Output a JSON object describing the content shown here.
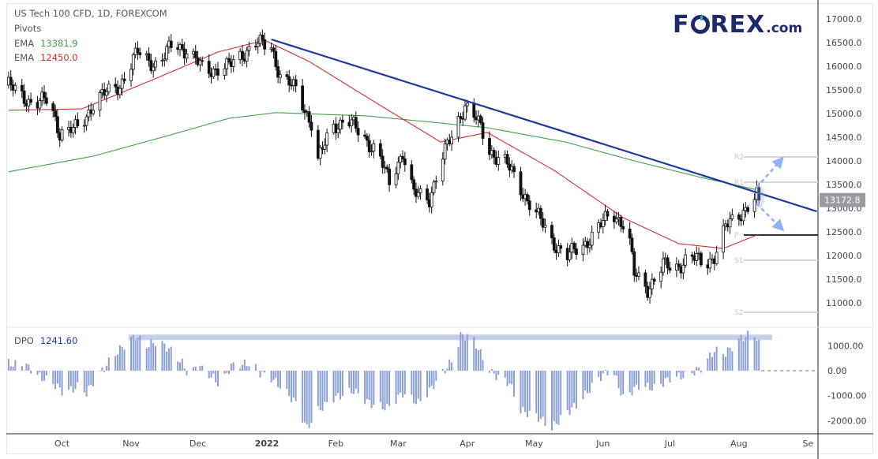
{
  "header": {
    "symbol_title": "US Tech 100 CFD, 1D, FOREXCOM",
    "pivots_label": "Pivots",
    "ema_label": "EMA",
    "ema_slow_value": "13381.9",
    "ema_fast_value": "12450.0",
    "dpo_label": "DPO",
    "dpo_value": "1241.60",
    "logo_text": "FOREX.com"
  },
  "colors": {
    "ema_slow": "#43a047",
    "ema_fast": "#d32f2f",
    "trendline": "#1e3a9e",
    "dpo_bars": "#8a9fd6",
    "highlight_band": "#c7d0ea",
    "arrows": "#8fb2f5",
    "price_label_bg": "#9a9ba0"
  },
  "chart_data": [
    {
      "type": "candlestick",
      "title": "US Tech 100 CFD, 1D, FOREXCOM",
      "x_ticks": [
        {
          "date": "2021-10-01",
          "label": "Oct"
        },
        {
          "date": "2021-11-01",
          "label": "Nov"
        },
        {
          "date": "2021-12-01",
          "label": "Dec"
        },
        {
          "date": "2022-01-01",
          "label": "2022"
        },
        {
          "date": "2022-02-01",
          "label": "Feb"
        },
        {
          "date": "2022-03-01",
          "label": "Mar"
        },
        {
          "date": "2022-04-01",
          "label": "Apr"
        },
        {
          "date": "2022-05-01",
          "label": "May"
        },
        {
          "date": "2022-06-01",
          "label": "Jun"
        },
        {
          "date": "2022-07-01",
          "label": "Jul"
        },
        {
          "date": "2022-08-01",
          "label": "Aug"
        },
        {
          "date": "2022-09-01",
          "label": "Se"
        }
      ],
      "y_ticks": [
        "17000.0",
        "16500.0",
        "16000.0",
        "15500.0",
        "15000.0",
        "14500.0",
        "14000.0",
        "13500.0",
        "13000.0",
        "12500.0",
        "12000.0",
        "11500.0",
        "11000.0"
      ],
      "ylim": [
        10700,
        17200
      ],
      "last_price": 13172.8,
      "approx_close_path": [
        [
          "2021-09-07",
          15600
        ],
        [
          "2021-09-18",
          15200
        ],
        [
          "2021-09-25",
          15300
        ],
        [
          "2021-09-30",
          14600
        ],
        [
          "2021-10-09",
          14700
        ],
        [
          "2021-10-16",
          15300
        ],
        [
          "2021-10-27",
          15600
        ],
        [
          "2021-11-04",
          16300
        ],
        [
          "2021-11-13",
          16000
        ],
        [
          "2021-11-20",
          16500
        ],
        [
          "2021-11-27",
          16300
        ],
        [
          "2021-12-04",
          15900
        ],
        [
          "2021-12-15",
          16000
        ],
        [
          "2021-12-27",
          16500
        ],
        [
          "2022-01-03",
          16400
        ],
        [
          "2022-01-07",
          15800
        ],
        [
          "2022-01-14",
          15500
        ],
        [
          "2022-01-21",
          14800
        ],
        [
          "2022-01-24",
          14000
        ],
        [
          "2022-01-30",
          14700
        ],
        [
          "2022-02-06",
          14900
        ],
        [
          "2022-02-13",
          14500
        ],
        [
          "2022-02-20",
          14200
        ],
        [
          "2022-02-25",
          13500
        ],
        [
          "2022-03-03",
          14200
        ],
        [
          "2022-03-08",
          13300
        ],
        [
          "2022-03-15",
          13200
        ],
        [
          "2022-03-20",
          14000
        ],
        [
          "2022-03-26",
          14600
        ],
        [
          "2022-03-31",
          15200
        ],
        [
          "2022-04-05",
          14900
        ],
        [
          "2022-04-11",
          14200
        ],
        [
          "2022-04-18",
          14000
        ],
        [
          "2022-04-25",
          13400
        ],
        [
          "2022-05-02",
          12900
        ],
        [
          "2022-05-09",
          12300
        ],
        [
          "2022-05-16",
          12000
        ],
        [
          "2022-05-23",
          12200
        ],
        [
          "2022-05-30",
          12600
        ],
        [
          "2022-06-05",
          12900
        ],
        [
          "2022-06-12",
          12600
        ],
        [
          "2022-06-15",
          11600
        ],
        [
          "2022-06-21",
          11300
        ],
        [
          "2022-06-28",
          11800
        ],
        [
          "2022-07-03",
          11700
        ],
        [
          "2022-07-10",
          12000
        ],
        [
          "2022-07-17",
          11800
        ],
        [
          "2022-07-21",
          12000
        ],
        [
          "2022-07-26",
          12600
        ],
        [
          "2022-08-02",
          12900
        ],
        [
          "2022-08-09",
          13250
        ],
        [
          "2022-08-10",
          13172.8
        ]
      ],
      "ema_slow_path": [
        [
          "2021-09-07",
          13770
        ],
        [
          "2021-10-15",
          14100
        ],
        [
          "2021-11-15",
          14500
        ],
        [
          "2021-12-15",
          14900
        ],
        [
          "2022-01-05",
          15020
        ],
        [
          "2022-02-15",
          14950
        ],
        [
          "2022-03-20",
          14800
        ],
        [
          "2022-04-10",
          14700
        ],
        [
          "2022-05-15",
          14400
        ],
        [
          "2022-06-15",
          14000
        ],
        [
          "2022-07-15",
          13650
        ],
        [
          "2022-08-10",
          13380
        ]
      ],
      "ema_fast_path": [
        [
          "2021-09-07",
          15070
        ],
        [
          "2021-10-10",
          15100
        ],
        [
          "2021-11-10",
          15700
        ],
        [
          "2021-12-10",
          16300
        ],
        [
          "2021-12-31",
          16550
        ],
        [
          "2022-01-20",
          16100
        ],
        [
          "2022-02-20",
          15200
        ],
        [
          "2022-03-20",
          14400
        ],
        [
          "2022-04-10",
          14600
        ],
        [
          "2022-05-10",
          13800
        ],
        [
          "2022-06-10",
          12800
        ],
        [
          "2022-07-05",
          12250
        ],
        [
          "2022-07-25",
          12150
        ],
        [
          "2022-08-10",
          12450
        ]
      ],
      "trendline": [
        [
          "2022-01-03",
          16567
        ],
        [
          "2022-09-05",
          12933
        ]
      ],
      "pivots": [
        {
          "label": "R2",
          "value": 14083
        },
        {
          "label": "R1",
          "value": 13550
        },
        {
          "label": "P",
          "value": 12433
        },
        {
          "label": "S1",
          "value": 11900
        },
        {
          "label": "S2",
          "value": 10800
        }
      ]
    },
    {
      "type": "bar",
      "title": "DPO",
      "y_ticks": [
        "1000.00",
        "0.00",
        "-1000.00",
        "-2000.00"
      ],
      "ylim": [
        -2500,
        1600
      ],
      "highlight_level": 1350,
      "approx_value_path": [
        [
          "2021-09-07",
          300
        ],
        [
          "2021-09-16",
          150
        ],
        [
          "2021-09-20",
          -200
        ],
        [
          "2021-09-27",
          -500
        ],
        [
          "2021-10-02",
          -900
        ],
        [
          "2021-10-09",
          -600
        ],
        [
          "2021-10-12",
          -900
        ],
        [
          "2021-10-16",
          -300
        ],
        [
          "2021-10-20",
          100
        ],
        [
          "2021-10-24",
          600
        ],
        [
          "2021-10-30",
          1100
        ],
        [
          "2021-11-03",
          1400
        ],
        [
          "2021-11-08",
          1000
        ],
        [
          "2021-11-13",
          1200
        ],
        [
          "2021-11-19",
          800
        ],
        [
          "2021-11-24",
          300
        ],
        [
          "2021-11-27",
          -200
        ],
        [
          "2021-12-01",
          200
        ],
        [
          "2021-12-08",
          -300
        ],
        [
          "2021-12-11",
          -600
        ],
        [
          "2021-12-16",
          200
        ],
        [
          "2021-12-25",
          300
        ],
        [
          "2021-12-29",
          -100
        ],
        [
          "2022-01-03",
          -300
        ],
        [
          "2022-01-08",
          -700
        ],
        [
          "2022-01-14",
          -1300
        ],
        [
          "2022-01-19",
          -2300
        ],
        [
          "2022-01-24",
          -1600
        ],
        [
          "2022-01-31",
          -1100
        ],
        [
          "2022-02-09",
          -800
        ],
        [
          "2022-02-16",
          -1300
        ],
        [
          "2022-02-24",
          -1500
        ],
        [
          "2022-03-03",
          -900
        ],
        [
          "2022-03-10",
          -1300
        ],
        [
          "2022-03-15",
          -800
        ],
        [
          "2022-03-20",
          -200
        ],
        [
          "2022-03-26",
          500
        ],
        [
          "2022-03-29",
          1400
        ],
        [
          "2022-04-03",
          1400
        ],
        [
          "2022-04-08",
          500
        ],
        [
          "2022-04-12",
          -100
        ],
        [
          "2022-04-20",
          -500
        ],
        [
          "2022-04-25",
          -1600
        ],
        [
          "2022-05-02",
          -1800
        ],
        [
          "2022-05-09",
          -2300
        ],
        [
          "2022-05-14",
          -1800
        ],
        [
          "2022-05-21",
          -1300
        ],
        [
          "2022-05-30",
          -300
        ],
        [
          "2022-06-05",
          100
        ],
        [
          "2022-06-10",
          -1100
        ],
        [
          "2022-06-17",
          -600
        ],
        [
          "2022-06-24",
          -700
        ],
        [
          "2022-07-01",
          -300
        ],
        [
          "2022-07-08",
          -200
        ],
        [
          "2022-07-15",
          100
        ],
        [
          "2022-07-21",
          800
        ],
        [
          "2022-07-26",
          700
        ],
        [
          "2022-08-02",
          1300
        ],
        [
          "2022-08-07",
          1500
        ],
        [
          "2022-08-10",
          1242
        ]
      ]
    }
  ]
}
